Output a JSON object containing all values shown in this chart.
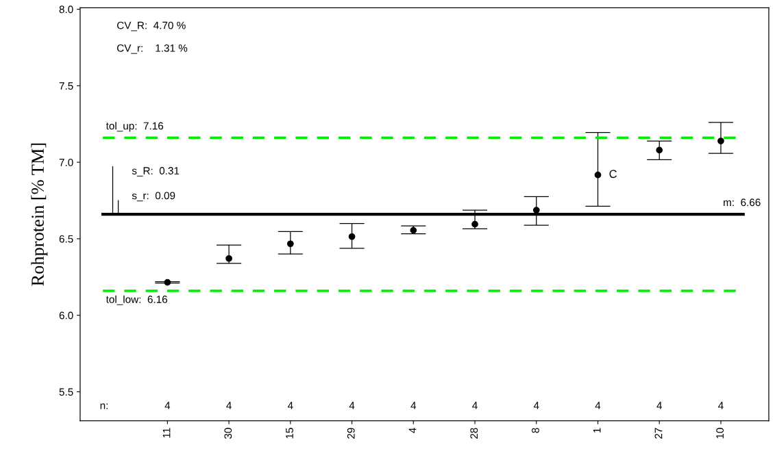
{
  "chart_data": {
    "type": "scatter",
    "ylabel": "Rohprotein [% TM]",
    "categories": [
      "11",
      "30",
      "15",
      "29",
      "4",
      "28",
      "8",
      "1",
      "27",
      "10"
    ],
    "series": [
      {
        "color": "#000000",
        "values": [
          6.215,
          6.371,
          6.467,
          6.514,
          6.555,
          6.595,
          6.687,
          6.917,
          7.079,
          7.139
        ],
        "errors": [
          0.005,
          [
            6.339,
            6.459
          ],
          [
            6.401,
            6.547
          ],
          [
            6.438,
            6.6
          ],
          [
            6.532,
            6.584
          ],
          [
            6.565,
            6.687
          ],
          [
            6.589,
            6.775
          ],
          [
            6.712,
            7.194
          ],
          [
            7.017,
            7.139
          ],
          [
            7.058,
            7.26
          ]
        ]
      }
    ],
    "marker": "circle",
    "ylim": [
      5.31,
      8.01
    ],
    "yticks": [
      {
        "value": 5.5,
        "label": "5.5"
      },
      {
        "value": 6.0,
        "label": "6.0"
      },
      {
        "value": 6.5,
        "label": "6.5"
      },
      {
        "value": 7.0,
        "label": "7.0"
      },
      {
        "value": 7.5,
        "label": "7.5"
      },
      {
        "value": 8.0,
        "label": "8.0"
      }
    ],
    "ref_lines": [
      {
        "axis": "y",
        "value": 6.66,
        "label": "m:  6.66",
        "color": "#000000",
        "line_style": "solid"
      },
      {
        "axis": "y",
        "value": 7.16,
        "label": "tol_up:  7.16",
        "color": "#00ee00",
        "line_style": "dashed"
      },
      {
        "axis": "y",
        "value": 6.16,
        "label": "tol_low:  6.16",
        "color": "#00ee00",
        "line_style": "dashed"
      }
    ],
    "annotations": [
      "CV_R:  4.70 %",
      "CV_r:    1.31 %",
      "s_R:  0.31",
      "s_r:  0.09",
      {
        "text": "C",
        "x": "1",
        "y": 6.917
      },
      "n:",
      "4",
      "4",
      "4",
      "4",
      "4",
      "4",
      "4",
      "4",
      "4",
      "4"
    ],
    "grid": false
  }
}
